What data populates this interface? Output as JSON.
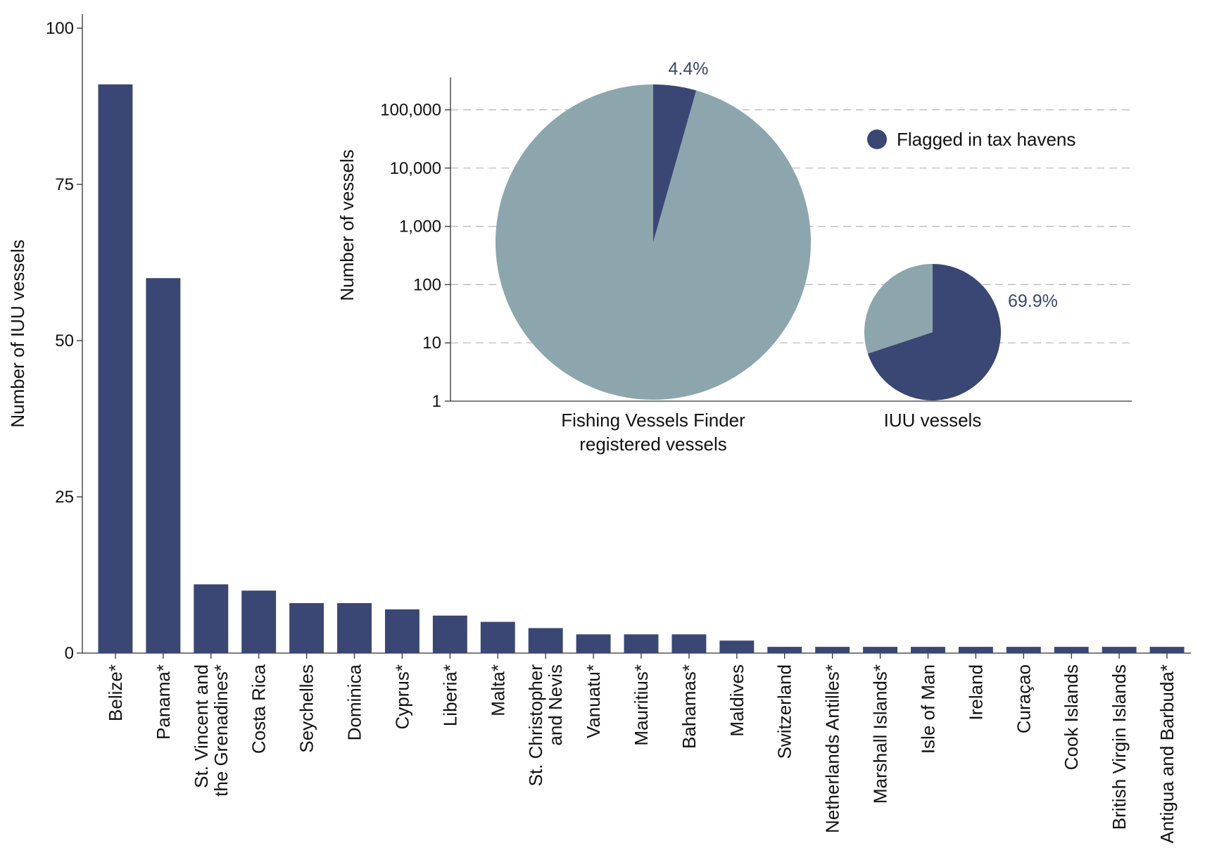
{
  "chart_data": [
    {
      "type": "bar",
      "title": "",
      "xlabel": "",
      "ylabel": "Number of IUU vessels",
      "ylim": [
        0,
        100
      ],
      "yticks": [
        0,
        25,
        50,
        75,
        100
      ],
      "bar_color": "#3a4674",
      "categories": [
        [
          "Belize*"
        ],
        [
          "Panama*"
        ],
        [
          "St. Vincent and",
          "the Grenadines*"
        ],
        [
          "Costa Rica"
        ],
        [
          "Seychelles"
        ],
        [
          "Dominica"
        ],
        [
          "Cyprus*"
        ],
        [
          "Liberia*"
        ],
        [
          "Malta*"
        ],
        [
          "St. Christopher",
          "and Nevis"
        ],
        [
          "Vanuatu*"
        ],
        [
          "Mauritius*"
        ],
        [
          "Bahamas*"
        ],
        [
          "Maldives"
        ],
        [
          "Switzerland"
        ],
        [
          "Netherlands Antilles*"
        ],
        [
          "Marshall Islands*"
        ],
        [
          "Isle of Man"
        ],
        [
          "Ireland"
        ],
        [
          "Curaçao"
        ],
        [
          "Cook Islands"
        ],
        [
          "British Virgin Islands"
        ],
        [
          "Antigua and Barbuda*"
        ]
      ],
      "values": [
        91,
        60,
        11,
        10,
        8,
        8,
        7,
        6,
        5,
        4,
        3,
        3,
        3,
        2,
        1,
        1,
        1,
        1,
        1,
        1,
        1,
        1,
        1
      ]
    },
    {
      "type": "pie",
      "title": "",
      "ylabel": "Number of vessels",
      "yscale": "log",
      "yticks": [
        {
          "value": 1,
          "label": "1"
        },
        {
          "value": 10,
          "label": "10"
        },
        {
          "value": 100,
          "label": "100"
        },
        {
          "value": 1000,
          "label": "1,000"
        },
        {
          "value": 10000,
          "label": "10,000"
        },
        {
          "value": 100000,
          "label": "100,000"
        }
      ],
      "grid": true,
      "legend": {
        "label": "Flagged in tax havens",
        "color": "#3a4674",
        "position": "top-right"
      },
      "other_color": "#8da6ad",
      "pies": [
        {
          "category": [
            "Fishing Vessels Finder",
            "registered vessels"
          ],
          "flagged_share_label": "4.4%",
          "flagged_share": 0.044
        },
        {
          "category": [
            "IUU vessels"
          ],
          "flagged_share_label": "69.9%",
          "flagged_share": 0.699
        }
      ]
    }
  ]
}
